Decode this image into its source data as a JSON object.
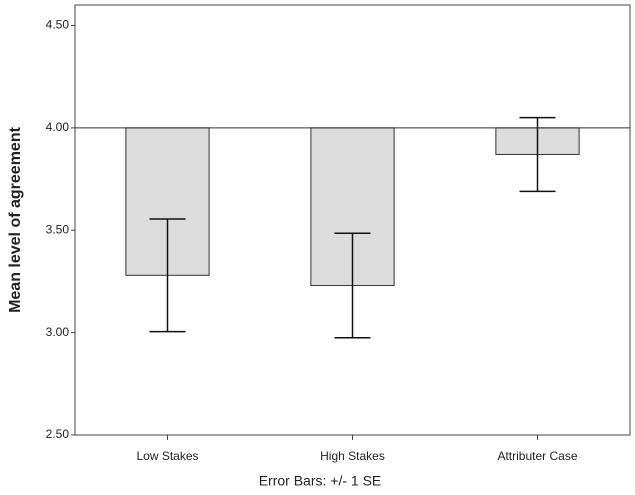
{
  "chart_data": {
    "type": "bar",
    "x_label": "Error Bars: +/- 1 SE",
    "y_label": "Mean level of agreement",
    "categories": [
      "Low Stakes",
      "High Stakes",
      "Attributer Case"
    ],
    "values": [
      3.28,
      3.23,
      3.87
    ],
    "errors": [
      0.275,
      0.255,
      0.18
    ],
    "baseline": 4,
    "color": "#dcdcdc",
    "ylim": [
      2.5,
      4.6
    ],
    "yticks": [
      {
        "value": 2.5,
        "label": "2.50"
      },
      {
        "value": 3,
        "label": "3.00"
      },
      {
        "value": 3.5,
        "label": "3.50"
      },
      {
        "value": 4,
        "label": "4.00"
      },
      {
        "value": 4.5,
        "label": "4.50"
      }
    ]
  }
}
